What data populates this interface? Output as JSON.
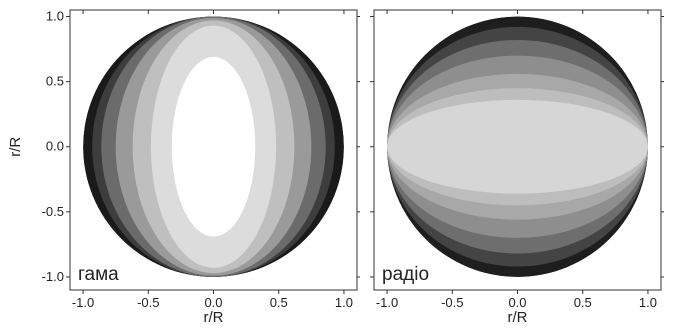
{
  "chart_data": [
    {
      "type": "heatmap",
      "panel_label": "гама",
      "xlabel": "r/R",
      "ylabel": "r/R",
      "xlim": [
        -1.1,
        1.1
      ],
      "ylim": [
        -1.1,
        1.05
      ],
      "x_ticks": [
        "-1.0",
        "-0.5",
        "0.0",
        "0.5",
        "1.0"
      ],
      "y_ticks": [
        "1.0",
        "0.5",
        "0.0",
        "-0.5",
        "-1.0"
      ],
      "contour_levels": [
        {
          "rx": 1.0,
          "ry": 1.0,
          "color": "#1a1a1a"
        },
        {
          "rx": 0.93,
          "ry": 1.0,
          "color": "#3d3d3d"
        },
        {
          "rx": 0.86,
          "ry": 1.0,
          "color": "#6b6b6b"
        },
        {
          "rx": 0.75,
          "ry": 0.99,
          "color": "#9a9a9a"
        },
        {
          "rx": 0.62,
          "ry": 0.97,
          "color": "#bfbfbf"
        },
        {
          "rx": 0.48,
          "ry": 0.93,
          "color": "#dcdcdc"
        },
        {
          "rx": 0.32,
          "ry": 0.69,
          "color": "#ffffff"
        }
      ]
    },
    {
      "type": "heatmap",
      "panel_label": "радіо",
      "xlabel": "r/R",
      "ylabel": "",
      "xlim": [
        -1.1,
        1.1
      ],
      "ylim": [
        -1.1,
        1.05
      ],
      "x_ticks": [
        "-1.0",
        "-0.5",
        "0.0",
        "0.5",
        "1.0"
      ],
      "y_ticks": [],
      "contour_levels": [
        {
          "rx": 1.0,
          "ry": 1.0,
          "color": "#1e1e1e"
        },
        {
          "rx": 1.0,
          "ry": 0.92,
          "color": "#444444"
        },
        {
          "rx": 1.0,
          "ry": 0.82,
          "color": "#6e6e6e"
        },
        {
          "rx": 1.0,
          "ry": 0.7,
          "color": "#8e8e8e"
        },
        {
          "rx": 1.0,
          "ry": 0.56,
          "color": "#a8a8a8"
        },
        {
          "rx": 1.0,
          "ry": 0.45,
          "color": "#bdbdbd"
        },
        {
          "rx": 1.0,
          "ry": 0.36,
          "color": "#d6d6d6"
        }
      ]
    }
  ]
}
